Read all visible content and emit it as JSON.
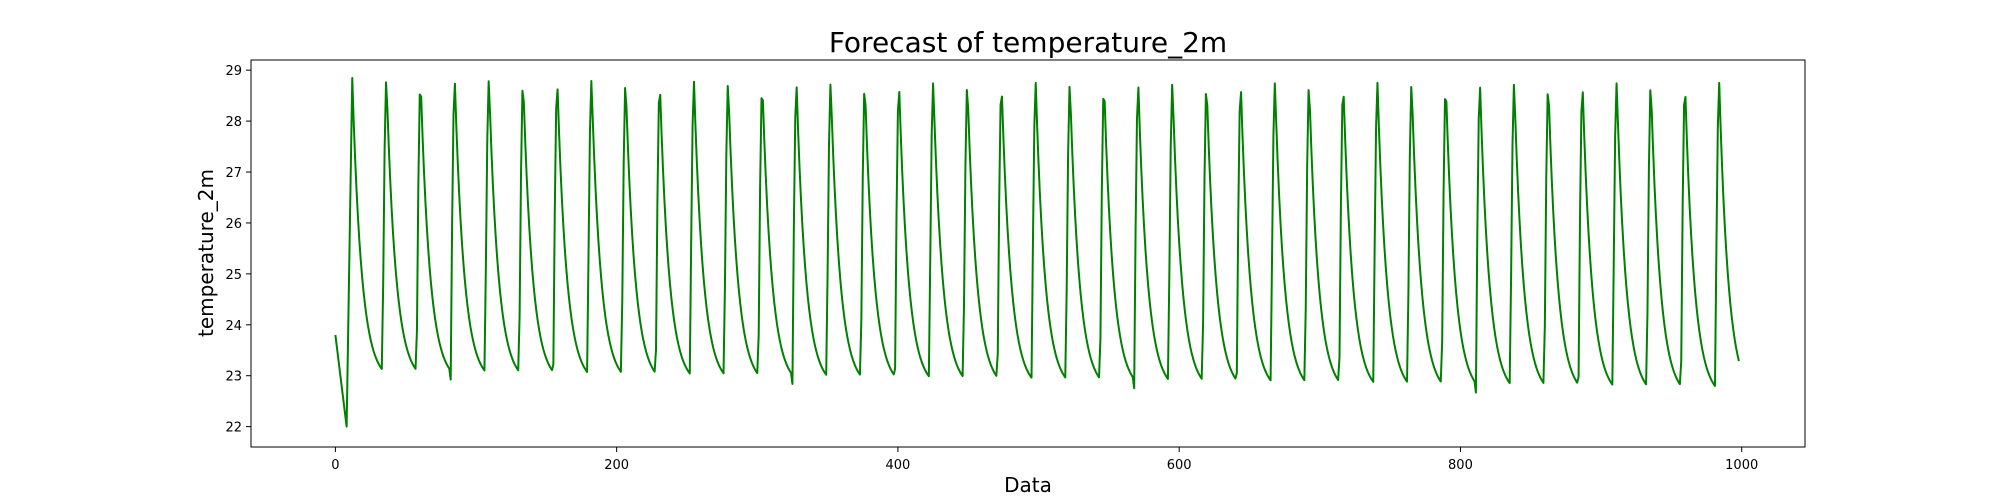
{
  "chart_data": {
    "type": "line",
    "title": "Forecast of temperature_2m",
    "xlabel": "Data",
    "ylabel": "temperature_2m",
    "xlim": [
      -60,
      1045
    ],
    "ylim": [
      21.6,
      29.2
    ],
    "xticks": [
      0,
      200,
      400,
      600,
      800,
      1000
    ],
    "yticks": [
      22,
      23,
      24,
      25,
      26,
      27,
      28,
      29
    ],
    "grid": false,
    "series": [
      {
        "color": "#008000",
        "period": 24.3,
        "x_start": 0,
        "x_end": 998,
        "y_start": 23.8,
        "initial_min": 22.0,
        "first_peak": 28.85,
        "peak_final": 28.75,
        "min_start": 22.9,
        "min_final": 22.55
      }
    ]
  }
}
